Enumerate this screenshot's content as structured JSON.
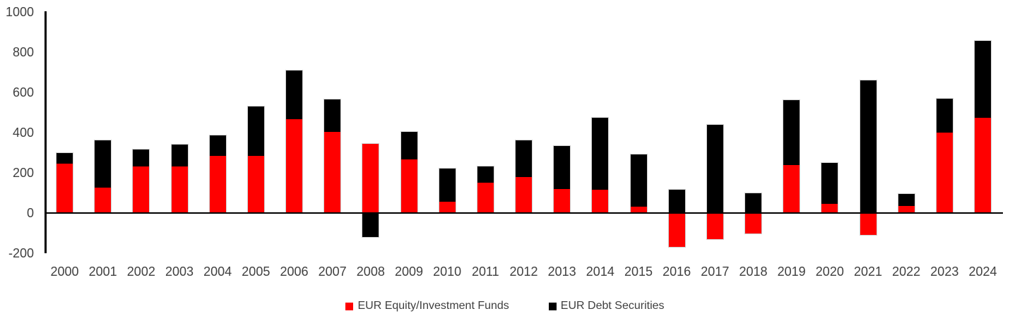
{
  "chart_data": {
    "type": "bar",
    "stacked": true,
    "title": "",
    "xlabel": "",
    "ylabel": "",
    "categories": [
      "2000",
      "2001",
      "2002",
      "2003",
      "2004",
      "2005",
      "2006",
      "2007",
      "2008",
      "2009",
      "2010",
      "2011",
      "2012",
      "2013",
      "2014",
      "2015",
      "2016",
      "2017",
      "2018",
      "2019",
      "2020",
      "2021",
      "2022",
      "2023",
      "2024"
    ],
    "series": [
      {
        "name": "EUR Equity/Investment Funds",
        "color": "#ff0000",
        "values": [
          245,
          125,
          230,
          230,
          285,
          285,
          465,
          405,
          345,
          265,
          55,
          150,
          180,
          120,
          115,
          30,
          -170,
          -130,
          -100,
          240,
          45,
          -110,
          35,
          400,
          475
        ]
      },
      {
        "name": "EUR Debt Securities",
        "color": "#000000",
        "values": [
          55,
          235,
          85,
          110,
          100,
          245,
          245,
          160,
          -120,
          140,
          165,
          80,
          180,
          215,
          360,
          260,
          115,
          440,
          100,
          320,
          205,
          660,
          60,
          170,
          380
        ]
      }
    ],
    "ylim": [
      -200,
      1000
    ],
    "yticks": [
      1000,
      800,
      600,
      400,
      200,
      0,
      -200
    ],
    "grid": false,
    "legend_position": "bottom-center"
  },
  "colors": {
    "axis_line": "#000000",
    "tick_label": "#404040",
    "bar_outline": "#cfcfcf",
    "background": "#ffffff"
  }
}
